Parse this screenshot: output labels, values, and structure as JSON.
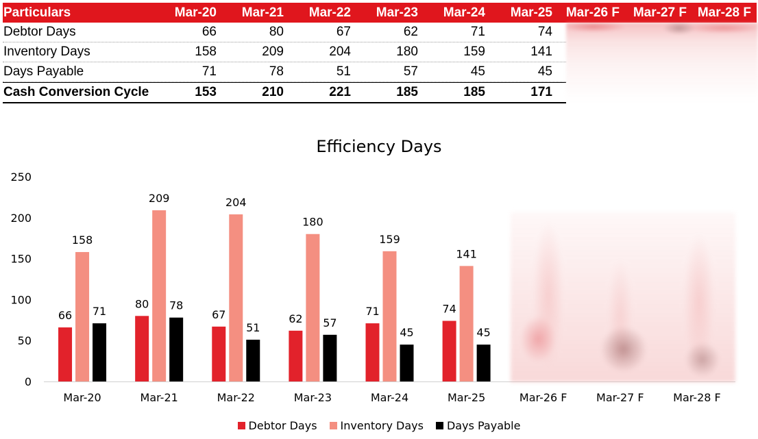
{
  "table": {
    "header": [
      "Particulars",
      "Mar-20",
      "Mar-21",
      "Mar-22",
      "Mar-23",
      "Mar-24",
      "Mar-25",
      "Mar-26 F",
      "Mar-27 F",
      "Mar-28 F"
    ],
    "rows": [
      {
        "label": "Debtor Days",
        "values": [
          "66",
          "80",
          "67",
          "62",
          "71",
          "74"
        ]
      },
      {
        "label": "Inventory Days",
        "values": [
          "158",
          "209",
          "204",
          "180",
          "159",
          "141"
        ]
      },
      {
        "label": "Days Payable",
        "values": [
          "71",
          "78",
          "51",
          "57",
          "45",
          "45"
        ]
      }
    ],
    "total": {
      "label": "Cash Conversion Cycle",
      "values": [
        "153",
        "210",
        "221",
        "185",
        "185",
        "171"
      ]
    }
  },
  "chart_data": {
    "type": "bar",
    "title": "Efficiency Days",
    "categories": [
      "Mar-20",
      "Mar-21",
      "Mar-22",
      "Mar-23",
      "Mar-24",
      "Mar-25",
      "Mar-26 F",
      "Mar-27 F",
      "Mar-28 F"
    ],
    "series": [
      {
        "name": "Debtor Days",
        "color": "#e2222b",
        "values": [
          66,
          80,
          67,
          62,
          71,
          74,
          null,
          null,
          null
        ]
      },
      {
        "name": "Inventory Days",
        "color": "#f48f81",
        "values": [
          158,
          209,
          204,
          180,
          159,
          141,
          null,
          null,
          null
        ]
      },
      {
        "name": "Days Payable",
        "color": "#000000",
        "values": [
          71,
          78,
          51,
          57,
          45,
          45,
          null,
          null,
          null
        ]
      }
    ],
    "yticks": [
      0,
      50,
      100,
      150,
      200,
      250
    ],
    "ylim": [
      0,
      250
    ],
    "legend_position": "bottom"
  },
  "colors": {
    "header_bg": "#e0161d",
    "header_text": "#ffffff"
  }
}
